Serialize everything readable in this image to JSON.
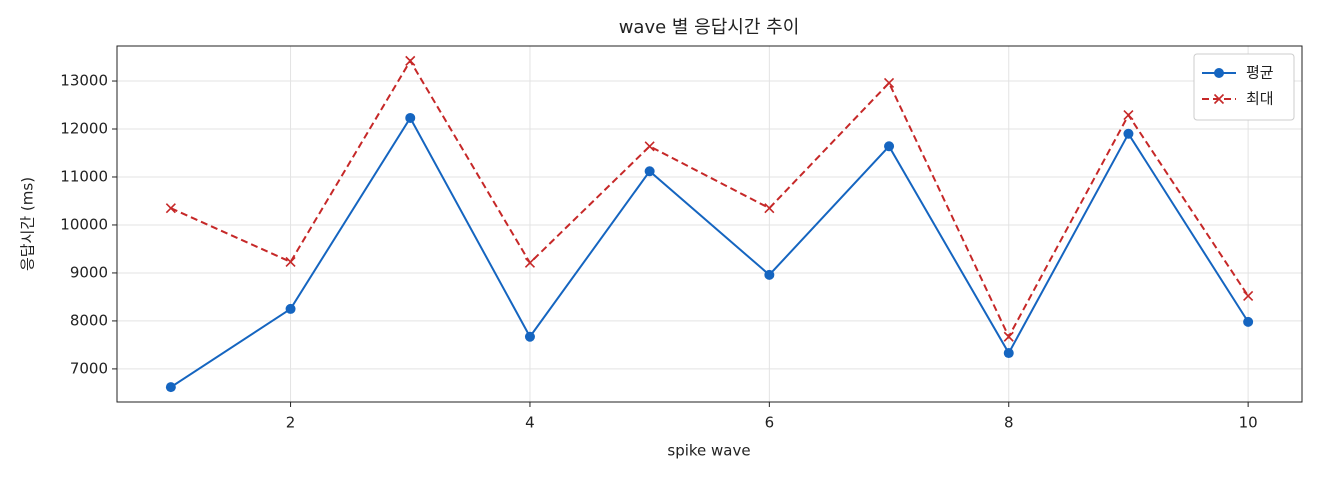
{
  "chart_data": {
    "type": "line",
    "title": "wave 별 응답시간 추이",
    "xlabel": "spike wave",
    "ylabel": "응답시간 (ms)",
    "x": [
      1,
      2,
      3,
      4,
      5,
      6,
      7,
      8,
      9,
      10
    ],
    "series": [
      {
        "name": "평균",
        "color": "#1565c0",
        "marker": "o",
        "linestyle": "solid",
        "values": [
          6620,
          8250,
          12230,
          7670,
          11120,
          8960,
          11640,
          7330,
          11900,
          7980
        ]
      },
      {
        "name": "최대",
        "color": "#c62828",
        "marker": "x",
        "linestyle": "dashed",
        "values": [
          10350,
          9230,
          13420,
          9210,
          11640,
          10350,
          12960,
          7670,
          12290,
          8520
        ]
      }
    ],
    "xlim": [
      0.55,
      10.45
    ],
    "ylim": [
      6310,
      13730
    ],
    "xticks": [
      2,
      4,
      6,
      8,
      10
    ],
    "yticks": [
      7000,
      8000,
      9000,
      10000,
      11000,
      12000,
      13000
    ],
    "grid": true,
    "legend": "upper right"
  }
}
